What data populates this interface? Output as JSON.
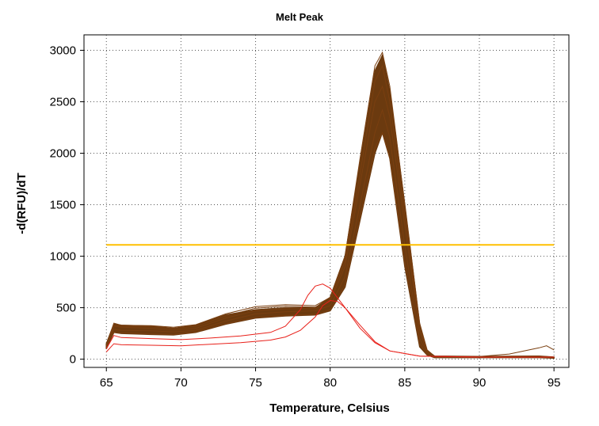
{
  "chart_data": {
    "type": "line",
    "title": "Melt Peak",
    "xlabel": "Temperature, Celsius",
    "ylabel": "-d(RFU)/dT",
    "xlim": [
      63.5,
      96
    ],
    "ylim": [
      -80,
      3150
    ],
    "xticks": [
      65,
      70,
      75,
      80,
      85,
      90,
      95
    ],
    "yticks": [
      0,
      500,
      1000,
      1500,
      2000,
      2500,
      3000
    ],
    "grid": true,
    "threshold": {
      "value": 1110,
      "x": [
        65,
        95
      ],
      "color": "#ffc000"
    },
    "colors": {
      "sample": "#7a3f10",
      "sample_band": "#6b3a0f",
      "negative": "#e8201a"
    },
    "sample_band": {
      "x": [
        65,
        65.5,
        66,
        68,
        69.5,
        71,
        73,
        75,
        77,
        79,
        80,
        81,
        82,
        83,
        83.5,
        84,
        85,
        86,
        86.5,
        87,
        90,
        94,
        95
      ],
      "lower": [
        100,
        260,
        250,
        240,
        235,
        260,
        340,
        400,
        420,
        430,
        470,
        700,
        1350,
        2000,
        2200,
        1950,
        900,
        120,
        40,
        15,
        15,
        15,
        10
      ],
      "upper": [
        150,
        340,
        330,
        320,
        300,
        330,
        430,
        480,
        500,
        500,
        600,
        1000,
        1900,
        2800,
        2950,
        2600,
        1500,
        330,
        80,
        30,
        25,
        30,
        20
      ]
    },
    "series": [
      {
        "kind": "sample",
        "x": [
          65,
          65.5,
          66,
          68,
          69.5,
          71,
          73,
          75,
          77,
          79,
          80,
          81,
          82,
          83,
          83.5,
          84,
          85,
          86,
          86.5,
          87,
          90,
          94,
          95
        ],
        "values": [
          135,
          350,
          330,
          325,
          310,
          335,
          440,
          510,
          530,
          520,
          600,
          1000,
          1950,
          2850,
          2980,
          2650,
          1500,
          350,
          90,
          30,
          25,
          30,
          20
        ]
      },
      {
        "kind": "sample",
        "x": [
          65,
          65.5,
          66,
          68,
          69.5,
          71,
          73,
          75,
          77,
          79,
          80,
          81,
          82,
          83,
          83.5,
          84,
          85,
          86,
          86.5,
          87,
          90,
          94,
          95
        ],
        "values": [
          120,
          320,
          310,
          300,
          285,
          300,
          400,
          470,
          490,
          490,
          560,
          900,
          1700,
          2500,
          2650,
          2350,
          1300,
          270,
          70,
          25,
          20,
          25,
          15
        ]
      },
      {
        "kind": "sample",
        "x": [
          65,
          65.5,
          66,
          68,
          69.5,
          71,
          73,
          75,
          77,
          79,
          80,
          81,
          82,
          83,
          83.5,
          84,
          85,
          86,
          86.5,
          87,
          90,
          94,
          95
        ],
        "values": [
          115,
          290,
          280,
          275,
          265,
          280,
          370,
          440,
          460,
          470,
          520,
          800,
          1500,
          2200,
          2420,
          2150,
          1100,
          200,
          60,
          20,
          18,
          22,
          12
        ]
      },
      {
        "kind": "sample",
        "x": [
          65,
          65.5,
          66,
          68,
          69.5,
          71,
          73,
          75,
          77,
          79,
          80,
          81,
          82,
          83,
          83.5,
          84,
          85,
          86,
          86.5,
          87,
          90,
          94,
          95
        ],
        "values": [
          100,
          260,
          255,
          245,
          240,
          265,
          345,
          405,
          425,
          435,
          480,
          720,
          1380,
          2050,
          2200,
          1950,
          950,
          150,
          45,
          15,
          15,
          18,
          10
        ]
      },
      {
        "kind": "sample",
        "x": [
          65,
          65.5,
          66,
          68,
          69.5,
          71,
          73,
          75,
          77,
          79,
          80,
          81,
          82,
          83,
          83.5,
          84,
          85,
          86,
          86.5,
          87,
          90,
          92,
          94,
          94.5,
          95
        ],
        "values": [
          130,
          330,
          320,
          315,
          300,
          320,
          420,
          495,
          515,
          505,
          580,
          950,
          1800,
          2700,
          2850,
          2500,
          1400,
          300,
          80,
          28,
          25,
          50,
          110,
          130,
          90
        ]
      },
      {
        "kind": "negative",
        "x": [
          65,
          65.5,
          66,
          68,
          70,
          72,
          74,
          76,
          77,
          78,
          78.5,
          79,
          79.5,
          80,
          81,
          82,
          83,
          84,
          86,
          90,
          95
        ],
        "values": [
          100,
          230,
          210,
          200,
          190,
          205,
          225,
          260,
          320,
          480,
          620,
          710,
          730,
          690,
          500,
          300,
          160,
          80,
          30,
          20,
          20
        ]
      },
      {
        "kind": "negative",
        "x": [
          65,
          65.5,
          66,
          68,
          70,
          72,
          74,
          76,
          77,
          78,
          79,
          79.5,
          80,
          80.5,
          81,
          82,
          83,
          84,
          86,
          90,
          95
        ],
        "values": [
          70,
          150,
          140,
          135,
          130,
          145,
          160,
          185,
          215,
          280,
          410,
          520,
          570,
          560,
          500,
          330,
          170,
          80,
          30,
          20,
          20
        ]
      }
    ]
  }
}
